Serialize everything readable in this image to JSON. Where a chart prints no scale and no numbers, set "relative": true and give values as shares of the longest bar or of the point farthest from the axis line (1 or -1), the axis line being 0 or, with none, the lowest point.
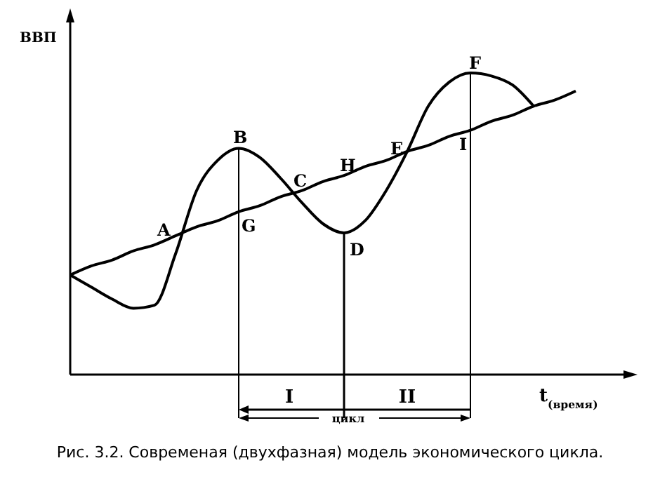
{
  "chart_data": {
    "type": "line",
    "relative": true,
    "xlabel": "t$_{(время)}$",
    "ylabel": "ВВП",
    "categories": [
      null,
      null,
      null,
      null,
      null,
      null,
      null,
      null,
      null,
      null,
      null,
      null,
      null,
      null,
      null,
      null,
      null,
      null,
      null,
      null,
      null,
      null,
      null,
      null,
      null
    ],
    "series": [
      {
        "color": "#000000",
        "values": [
          0.33,
          0.29,
          0.25,
          0.22,
          0.23,
          0.4,
          0.61,
          0.71,
          0.75,
          0.72,
          0.65,
          0.57,
          0.5,
          0.47,
          0.51,
          0.61,
          0.74,
          0.89,
          0.97,
          1.0,
          0.99,
          0.96,
          0.89,
          null,
          null
        ]
      },
      {
        "color": "#000000",
        "values": [
          0.33,
          0.36,
          0.38,
          0.41,
          0.43,
          0.46,
          0.49,
          0.51,
          0.54,
          0.56,
          0.59,
          0.61,
          0.64,
          0.66,
          0.69,
          0.71,
          0.74,
          0.76,
          0.79,
          0.81,
          0.84,
          0.86,
          0.89,
          0.91,
          0.94
        ]
      }
    ],
    "annotations": [
      "A",
      "B",
      "C",
      "D",
      "E",
      "F",
      "G",
      "H",
      "I",
      "I",
      "II",
      "цикл",
      "Рис. 3.2. Современая (двухфазная) модель экономического цикла."
    ]
  }
}
